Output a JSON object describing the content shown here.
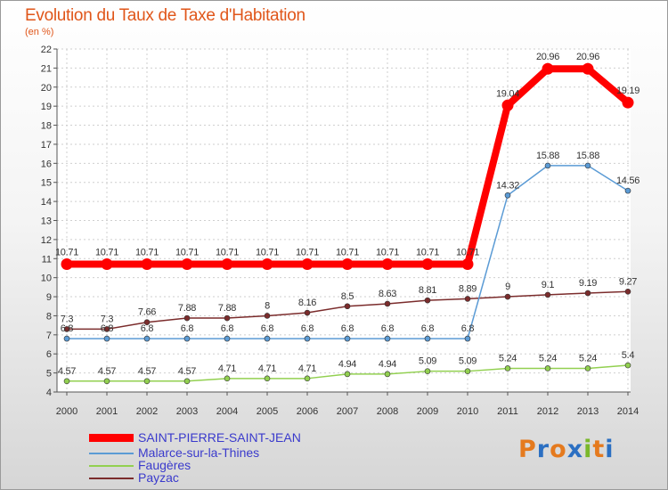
{
  "header": {
    "title": "Evolution du Taux de Taxe d'Habitation",
    "unit": "(en %)"
  },
  "logo": {
    "letters": [
      "P",
      "r",
      "o",
      "x",
      "i",
      "t",
      "i"
    ],
    "colors": [
      "#e57a1e",
      "#2b6fc2",
      "#e57a1e",
      "#2b6fc2",
      "#7ab82a",
      "#e57a1e",
      "#2b6fc2"
    ]
  },
  "chart_data": {
    "type": "line",
    "title": "Evolution du Taux de Taxe d'Habitation",
    "ylabel": "(en %)",
    "x": [
      "2000",
      "2001",
      "2002",
      "2003",
      "2004",
      "2005",
      "2006",
      "2007",
      "2008",
      "2009",
      "2010",
      "2011",
      "2012",
      "2013",
      "2014"
    ],
    "ylim": [
      4,
      22
    ],
    "yticks": [
      "4",
      "5",
      "6",
      "7",
      "8",
      "9",
      "10",
      "11",
      "12",
      "13",
      "14",
      "15",
      "16",
      "17",
      "18",
      "19",
      "20",
      "21",
      "22"
    ],
    "grid": true,
    "legend_position": "bottom-left",
    "series": [
      {
        "name": "SAINT-PIERRE-SAINT-JEAN",
        "color": "#ff0000",
        "width": 8,
        "values": [
          10.71,
          10.71,
          10.71,
          10.71,
          10.71,
          10.71,
          10.71,
          10.71,
          10.71,
          10.71,
          10.71,
          19.04,
          20.96,
          20.96,
          19.19
        ],
        "labels": [
          "10.71",
          "10.71",
          "10.71",
          "10.71",
          "10.71",
          "10.71",
          "10.71",
          "10.71",
          "10.71",
          "10.71",
          "10.71",
          "19.04",
          "20.96",
          "20.96",
          "19.19"
        ]
      },
      {
        "name": "Malarce-sur-la-Thines",
        "color": "#5b9bd5",
        "width": 1.5,
        "values": [
          6.8,
          6.8,
          6.8,
          6.8,
          6.8,
          6.8,
          6.8,
          6.8,
          6.8,
          6.8,
          6.8,
          14.32,
          15.88,
          15.88,
          14.56
        ],
        "labels": [
          "6.8",
          "6.8",
          "6.8",
          "6.8",
          "6.8",
          "6.8",
          "6.8",
          "6.8",
          "6.8",
          "6.8",
          "6.8",
          "14.32",
          "15.88",
          "15.88",
          "14.56"
        ]
      },
      {
        "name": "Faugères",
        "color": "#92d050",
        "width": 1.5,
        "values": [
          4.57,
          4.57,
          4.57,
          4.57,
          4.71,
          4.71,
          4.71,
          4.94,
          4.94,
          5.09,
          5.09,
          5.24,
          5.24,
          5.24,
          5.4
        ],
        "labels": [
          "4.57",
          "4.57",
          "4.57",
          "4.57",
          "4.71",
          "4.71",
          "4.71",
          "4.94",
          "4.94",
          "5.09",
          "5.09",
          "5.24",
          "5.24",
          "5.24",
          "5.4"
        ]
      },
      {
        "name": "Payzac",
        "color": "#7b2c2c",
        "width": 1.5,
        "values": [
          7.3,
          7.3,
          7.66,
          7.88,
          7.88,
          8,
          8.16,
          8.5,
          8.63,
          8.81,
          8.89,
          9,
          9.1,
          9.19,
          9.27
        ],
        "labels": [
          "7.3",
          "7.3",
          "7.66",
          "7.88",
          "7.88",
          "8",
          "8.16",
          "8.5",
          "8.63",
          "8.81",
          "8.89",
          "9",
          "9.1",
          "9.19",
          "9.27"
        ]
      }
    ]
  }
}
